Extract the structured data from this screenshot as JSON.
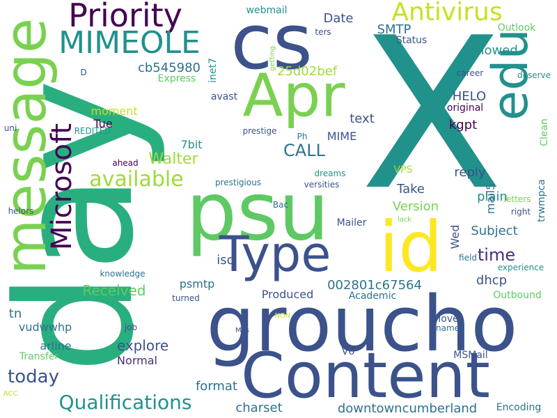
{
  "word_cloud": {
    "words": [
      {
        "text": "X",
        "color": "#21918c",
        "rotate": false
      },
      {
        "text": "day",
        "color": "#29af7f",
        "rotate": true
      },
      {
        "text": "groucho",
        "color": "#3b528b",
        "rotate": false
      },
      {
        "text": "Content",
        "color": "#3b528b",
        "rotate": false
      },
      {
        "text": "psu",
        "color": "#5ec962",
        "rotate": false
      },
      {
        "text": "message",
        "color": "#7ad151",
        "rotate": true
      },
      {
        "text": "cs",
        "color": "#3b528b",
        "rotate": false
      },
      {
        "text": "Type",
        "color": "#3b528b",
        "rotate": false
      },
      {
        "text": "id",
        "color": "#fde725",
        "rotate": false
      },
      {
        "text": "Apr",
        "color": "#7ad151",
        "rotate": false
      },
      {
        "text": "edu",
        "color": "#21918c",
        "rotate": true
      },
      {
        "text": "Microsoft",
        "color": "#440154",
        "rotate": true
      },
      {
        "text": "Priority",
        "color": "#440154",
        "rotate": false
      },
      {
        "text": "MIMEOLE",
        "color": "#21918c",
        "rotate": false
      },
      {
        "text": "Antivirus",
        "color": "#c8e020",
        "rotate": false
      },
      {
        "text": "available",
        "color": "#a0da39",
        "rotate": false
      },
      {
        "text": "Qualifications",
        "color": "#21918c",
        "rotate": false
      },
      {
        "text": "downtowncumberland",
        "color": "#2c728e",
        "rotate": false
      },
      {
        "text": "cb545980",
        "color": "#2c728e",
        "rotate": false
      },
      {
        "text": "CALL",
        "color": "#2c728e",
        "rotate": false
      },
      {
        "text": "time",
        "color": "#472d7b",
        "rotate": false
      },
      {
        "text": "today",
        "color": "#3b528b",
        "rotate": false
      },
      {
        "text": "Walter",
        "color": "#a0da39",
        "rotate": false
      },
      {
        "text": "Received",
        "color": "#5ec962",
        "rotate": false
      },
      {
        "text": "explore",
        "color": "#3b528b",
        "rotate": false
      },
      {
        "text": "charset",
        "color": "#2c728e",
        "rotate": false
      },
      {
        "text": "format",
        "color": "#2c728e",
        "rotate": false
      },
      {
        "text": "002801c67564",
        "color": "#2c728e",
        "rotate": false
      },
      {
        "text": "25d02bef",
        "color": "#a0da39",
        "rotate": false
      },
      {
        "text": "HELO",
        "color": "#3b528b",
        "rotate": false
      },
      {
        "text": "kgpt",
        "color": "#440154",
        "rotate": false
      },
      {
        "text": "flowed",
        "color": "#21918c",
        "rotate": false
      },
      {
        "text": "SMTP",
        "color": "#2c728e",
        "rotate": false
      },
      {
        "text": "Date",
        "color": "#3b528b",
        "rotate": false
      },
      {
        "text": "webmail",
        "color": "#21918c",
        "rotate": false
      },
      {
        "text": "text",
        "color": "#3b528b",
        "rotate": false
      },
      {
        "text": "reply",
        "color": "#3b528b",
        "rotate": false
      },
      {
        "text": "plain",
        "color": "#21918c",
        "rotate": false
      },
      {
        "text": "Take",
        "color": "#3b528b",
        "rotate": false
      },
      {
        "text": "Version",
        "color": "#7ad151",
        "rotate": false
      },
      {
        "text": "Subject",
        "color": "#2c728e",
        "rotate": false
      },
      {
        "text": "psmtp",
        "color": "#2c728e",
        "rotate": false
      },
      {
        "text": "dhcp",
        "color": "#3b528b",
        "rotate": false
      },
      {
        "text": "Produced",
        "color": "#3b528b",
        "rotate": false
      },
      {
        "text": "vudwwhp",
        "color": "#2c728e",
        "rotate": false
      },
      {
        "text": "arline",
        "color": "#2c728e",
        "rotate": false
      },
      {
        "text": "Normal",
        "color": "#472d7b",
        "rotate": false
      },
      {
        "text": "MIME",
        "color": "#3b528b",
        "rotate": false
      },
      {
        "text": "moment",
        "color": "#c8e020",
        "rotate": false
      },
      {
        "text": "Tue",
        "color": "#440154",
        "rotate": false
      },
      {
        "text": "7bit",
        "color": "#21918c",
        "rotate": false
      },
      {
        "text": "Outbound",
        "color": "#5ec962",
        "rotate": false
      },
      {
        "text": "Academic",
        "color": "#2c728e",
        "rotate": false
      },
      {
        "text": "Encoding",
        "color": "#2c728e",
        "rotate": false
      },
      {
        "text": "Outlook",
        "color": "#5ec962",
        "rotate": false
      },
      {
        "text": "original",
        "color": "#440154",
        "rotate": false
      },
      {
        "text": "VPS",
        "color": "#a0da39",
        "rotate": false
      },
      {
        "text": "Mailer",
        "color": "#3b528b",
        "rotate": false
      },
      {
        "text": "Status",
        "color": "#3b528b",
        "rotate": false
      },
      {
        "text": "MSMail",
        "color": "#3b528b",
        "rotate": false
      },
      {
        "text": "V6",
        "color": "#3b528b",
        "rotate": false
      },
      {
        "text": "Move",
        "color": "#3b528b",
        "rotate": false
      },
      {
        "text": "iso",
        "color": "#3b528b",
        "rotate": false
      },
      {
        "text": "avast",
        "color": "#3b528b",
        "rotate": false
      },
      {
        "text": "Express",
        "color": "#5ec962",
        "rotate": false
      },
      {
        "text": "tn",
        "color": "#2c728e",
        "rotate": false
      },
      {
        "text": "Transfer",
        "color": "#5ec962",
        "rotate": false
      },
      {
        "text": "Mas",
        "color": "#3b528b",
        "rotate": false
      },
      {
        "text": "mail5",
        "color": "#2c728e",
        "rotate": true
      },
      {
        "text": "inet7",
        "color": "#21918c",
        "rotate": true
      },
      {
        "text": "trwmpca",
        "color": "#2c728e",
        "rotate": true
      },
      {
        "text": "Wed",
        "color": "#3b528b",
        "rotate": true
      },
      {
        "text": "Clean",
        "color": "#5ec962",
        "rotate": true
      },
      {
        "text": "getting",
        "color": "#7ad151",
        "rotate": true
      },
      {
        "text": "Bac",
        "color": "#2c728e",
        "rotate": false
      },
      {
        "text": "lack",
        "color": "#7ad151",
        "rotate": false
      },
      {
        "text": "letters",
        "color": "#7ad151",
        "rotate": false
      },
      {
        "text": "right",
        "color": "#3b528b",
        "rotate": false
      },
      {
        "text": "field",
        "color": "#2c728e",
        "rotate": false
      },
      {
        "text": "experience",
        "color": "#21918c",
        "rotate": false
      },
      {
        "text": "career",
        "color": "#3b528b",
        "rotate": false
      },
      {
        "text": "deserve",
        "color": "#21918c",
        "rotate": false
      },
      {
        "text": "prestige",
        "color": "#3b528b",
        "rotate": false
      },
      {
        "text": "prestigious",
        "color": "#2c728e",
        "rotate": false
      },
      {
        "text": "dreams",
        "color": "#21918c",
        "rotate": false
      },
      {
        "text": "versities",
        "color": "#3b528b",
        "rotate": false
      },
      {
        "text": "Ph",
        "color": "#2c728e",
        "rotate": false
      },
      {
        "text": "knowledge",
        "color": "#2c728e",
        "rotate": false
      },
      {
        "text": "turned",
        "color": "#3b528b",
        "rotate": false
      },
      {
        "text": "ahead",
        "color": "#440154",
        "rotate": false
      },
      {
        "text": "REDITED",
        "color": "#21918c",
        "rotate": false
      },
      {
        "text": "uni",
        "color": "#3b528b",
        "rotate": false
      },
      {
        "text": "D",
        "color": "#3b528b",
        "rotate": false
      },
      {
        "text": "helors",
        "color": "#3b528b",
        "rotate": false
      },
      {
        "text": "ACC",
        "color": "#c8e020",
        "rotate": false
      },
      {
        "text": "job",
        "color": "#3b528b",
        "rotate": false
      },
      {
        "text": "NON",
        "color": "#c8e020",
        "rotate": false
      },
      {
        "text": "name",
        "color": "#2c728e",
        "rotate": false
      },
      {
        "text": "ters",
        "color": "#3b528b",
        "rotate": false
      }
    ]
  }
}
